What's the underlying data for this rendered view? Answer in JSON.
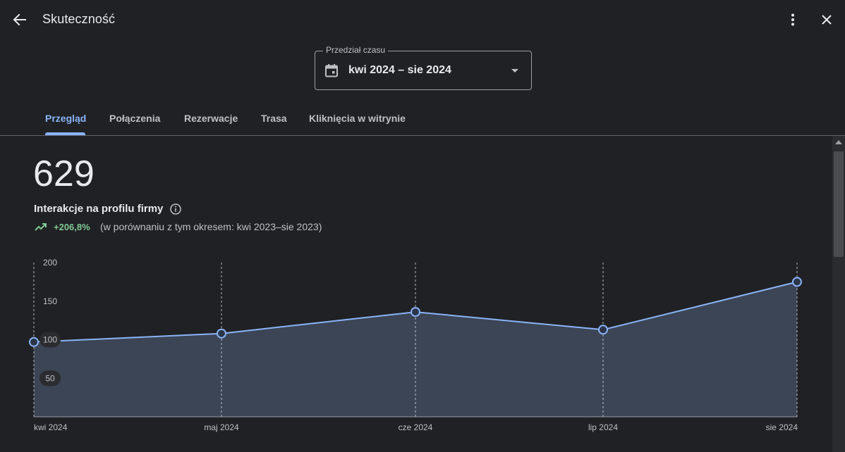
{
  "header": {
    "title": "Skuteczność",
    "icons": {
      "back": "arrow-back-icon",
      "more": "more-vert-icon",
      "close": "close-icon"
    }
  },
  "date_range": {
    "legend": "Przedział czasu",
    "value": "kwi 2024 – sie 2024",
    "icon": "calendar-icon"
  },
  "tabs": [
    {
      "label": "Przegląd",
      "active": true
    },
    {
      "label": "Połączenia",
      "active": false
    },
    {
      "label": "Rezerwacje",
      "active": false
    },
    {
      "label": "Trasa",
      "active": false
    },
    {
      "label": "Kliknięcia w witrynie",
      "active": false
    }
  ],
  "summary": {
    "total": "629",
    "label": "Interakcje na profilu firmy",
    "trend": "+206,8%",
    "compare": "(w porównaniu z tym okresem: kwi 2023–sie 2023)"
  },
  "colors": {
    "accent": "#8ab4f8",
    "positive": "#81c995",
    "background": "#202124",
    "area_fill": "#3c4555"
  },
  "chart_data": {
    "type": "area",
    "x": [
      "kwi 2024",
      "maj 2024",
      "cze 2024",
      "lip 2024",
      "sie 2024"
    ],
    "y_ticks": [
      200,
      150,
      100,
      50
    ],
    "ylim": [
      0,
      200
    ],
    "series": [
      {
        "values": [
          97,
          108,
          136,
          113,
          175
        ]
      }
    ],
    "grid": "vertical-dashed"
  }
}
